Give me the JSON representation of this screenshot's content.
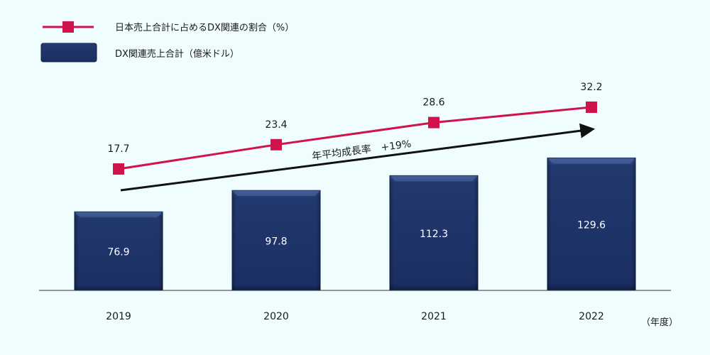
{
  "chart_data": {
    "type": "bar",
    "categories": [
      "2019",
      "2020",
      "2021",
      "2022"
    ],
    "x_unit": "（年度）",
    "series": [
      {
        "name": "DX関連売上合計（億米ドル）",
        "type": "bar",
        "values": [
          76.9,
          97.8,
          112.3,
          129.6
        ],
        "color": "#1e3366"
      },
      {
        "name": "日本売上合計に占めるDX関連の割合（%）",
        "type": "line",
        "values": [
          17.7,
          23.4,
          28.6,
          32.2
        ],
        "color": "#d0134a"
      }
    ],
    "annotation": "年平均成長率　+19%",
    "legend_position": "top-left",
    "grid": false
  },
  "colors": {
    "background": "#f0fdfe",
    "bar": "#1e3366",
    "bar_edge": "#0d1f45",
    "line": "#d0134a",
    "arrow": "#111111",
    "axis": "#333333"
  }
}
